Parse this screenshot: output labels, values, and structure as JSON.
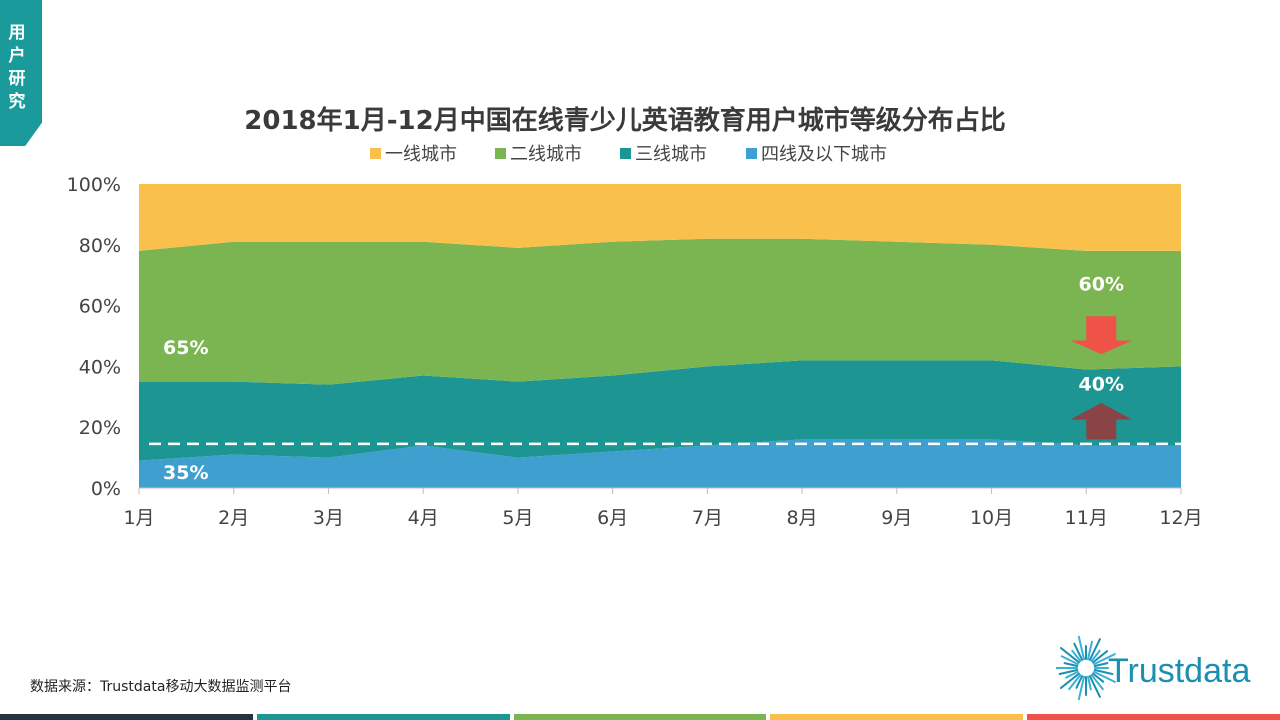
{
  "side_tag": "用户研究",
  "source": "数据来源：Trustdata移动大数据监测平台",
  "logo_text": "Trustdata",
  "colors": {
    "tag": "#1a9a9a",
    "series": [
      "#f9c04c",
      "#7ab552",
      "#1d9693",
      "#3fa0cf"
    ],
    "arrow_down": "#ef5347",
    "arrow_up": "#8b4446",
    "bottom_bar": [
      "#263440",
      "#1d9693",
      "#7ab552",
      "#f9c04c",
      "#ef5347"
    ]
  },
  "chart_data": {
    "type": "area",
    "stacked": true,
    "title": "2018年1月-12月中国在线青少儿英语教育用户城市等级分布占比",
    "legend_position": "top",
    "categories": [
      "1月",
      "2月",
      "3月",
      "4月",
      "5月",
      "6月",
      "7月",
      "8月",
      "9月",
      "10月",
      "11月",
      "12月"
    ],
    "ylim": [
      0,
      100
    ],
    "yticks": [
      "0%",
      "20%",
      "40%",
      "60%",
      "80%",
      "100%"
    ],
    "series": [
      {
        "name": "四线及以下城市",
        "values": [
          9,
          11,
          10,
          14,
          10,
          12,
          14,
          16,
          16,
          16,
          14,
          14
        ]
      },
      {
        "name": "三线城市",
        "values": [
          26,
          24,
          24,
          23,
          25,
          25,
          26,
          26,
          26,
          26,
          25,
          26
        ]
      },
      {
        "name": "二线城市",
        "values": [
          43,
          46,
          47,
          44,
          44,
          44,
          42,
          40,
          39,
          38,
          39,
          38
        ]
      },
      {
        "name": "一线城市",
        "values": [
          22,
          19,
          19,
          19,
          21,
          19,
          18,
          18,
          19,
          20,
          22,
          22
        ]
      }
    ],
    "legend_order": [
      "一线城市",
      "二线城市",
      "三线城市",
      "四线及以下城市"
    ],
    "reference_line": 14.5,
    "annotations": [
      {
        "text": "65%",
        "category": "1月",
        "y": 44
      },
      {
        "text": "35%",
        "category": "1月",
        "y": 3
      },
      {
        "text": "60%",
        "category": "11月",
        "y": 65
      },
      {
        "text": "40%",
        "category": "11月",
        "y": 32
      }
    ]
  }
}
